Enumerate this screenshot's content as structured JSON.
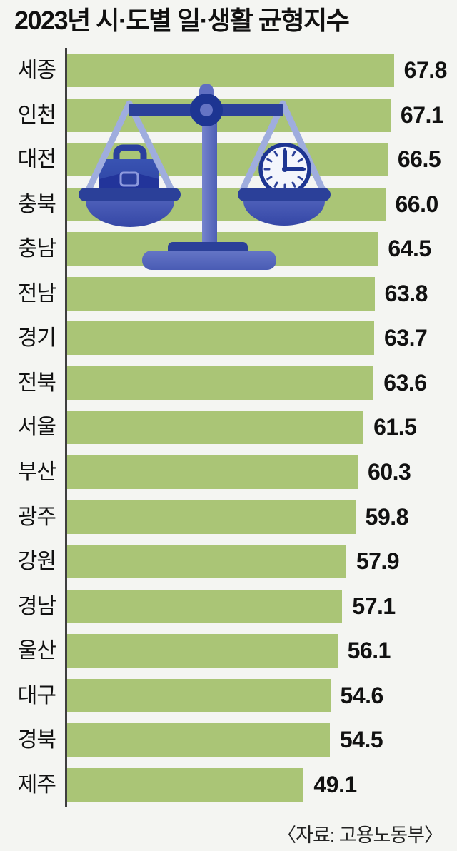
{
  "title": "2023년 시·도별 일·생활 균형지수",
  "source": "〈자료: 고용노동부〉",
  "chart_data": {
    "type": "bar",
    "orientation": "horizontal",
    "title": "2023년 시·도별 일·생활 균형지수",
    "categories": [
      "세종",
      "인천",
      "대전",
      "충북",
      "충남",
      "전남",
      "경기",
      "전북",
      "서울",
      "부산",
      "광주",
      "강원",
      "경남",
      "울산",
      "대구",
      "경북",
      "제주"
    ],
    "values": [
      67.8,
      67.1,
      66.5,
      66.0,
      64.5,
      63.8,
      63.7,
      63.6,
      61.5,
      60.3,
      59.8,
      57.9,
      57.1,
      56.1,
      54.6,
      54.5,
      49.1
    ],
    "value_labels": [
      "67.8",
      "67.1",
      "66.5",
      "66.0",
      "64.5",
      "63.8",
      "63.7",
      "63.6",
      "61.5",
      "60.3",
      "59.8",
      "57.9",
      "57.1",
      "56.1",
      "54.6",
      "54.5",
      "49.1"
    ],
    "xlim": [
      0,
      81
    ],
    "grid": false,
    "legend": false,
    "bar_color": "#aac576",
    "axis_color": "#3f3f3f",
    "source": "〈자료: 고용노동부〉"
  },
  "illustration": {
    "type": "balance-scale",
    "left_pan_item": "briefcase",
    "right_pan_item": "clock",
    "clock_time": "3:00",
    "colors": {
      "dark_navy": "#1d3592",
      "navy": "#2b4099",
      "briefcase_blue": "#3049a8",
      "indigo": "#5e6ec1",
      "periwinkle": "#9fadde",
      "clock_face": "#f3f5fc"
    }
  }
}
